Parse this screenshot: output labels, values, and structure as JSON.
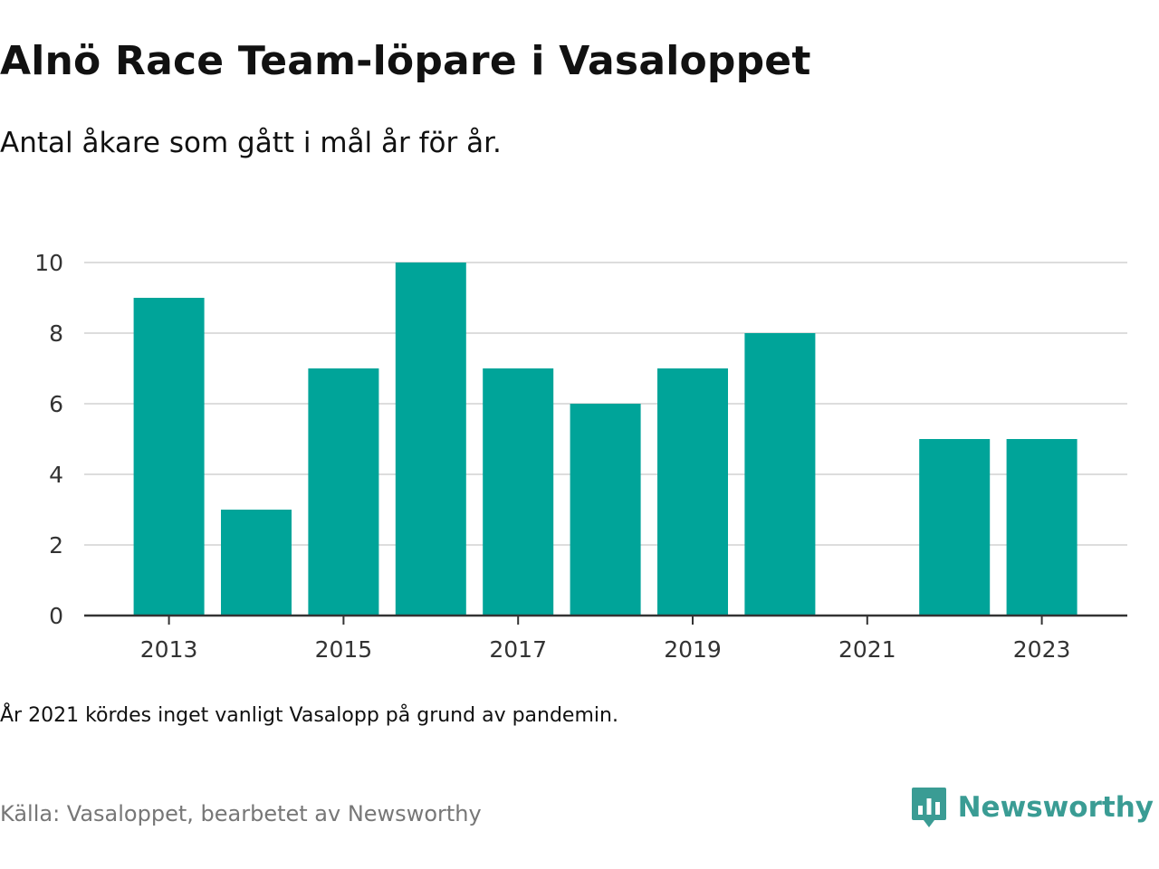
{
  "title": "Alnö Race Team-löpare i Vasaloppet",
  "subtitle": "Antal åkare som gått i mål år för år.",
  "note": "År 2021 kördes inget vanligt Vasalopp på grund av pandemin.",
  "source": "Källa: Vasaloppet, bearbetet av Newsworthy",
  "brand": {
    "name": "Newsworthy",
    "icon": "newsworthy-logo-icon"
  },
  "colors": {
    "bar": "#00A499",
    "grid": "#DDDDDD",
    "axis": "#333333",
    "brand": "#3A9C94",
    "source": "#777777"
  },
  "chart_data": {
    "type": "bar",
    "categories": [
      "2013",
      "2014",
      "2015",
      "2016",
      "2017",
      "2018",
      "2019",
      "2020",
      "2021",
      "2022",
      "2023"
    ],
    "values": [
      9,
      3,
      7,
      10,
      7,
      6,
      7,
      8,
      0,
      5,
      5
    ],
    "x_tick_labels": [
      "2013",
      "2015",
      "2017",
      "2019",
      "2021",
      "2023"
    ],
    "y_tick_labels": [
      "0",
      "2",
      "4",
      "6",
      "8",
      "10"
    ],
    "ylim": [
      0,
      10
    ],
    "grid": true,
    "legend": false,
    "xlabel": "",
    "ylabel": ""
  }
}
